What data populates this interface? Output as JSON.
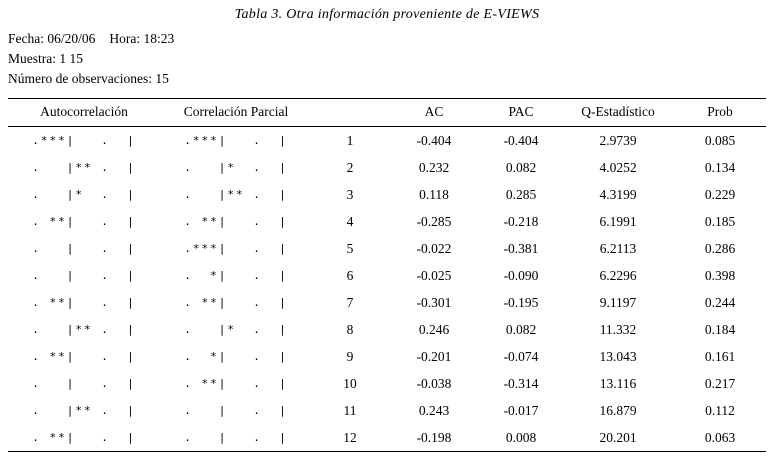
{
  "page": {
    "title": "Tabla 3. Otra información proveniente de E-VIEWS",
    "info": {
      "fecha": "Fecha: 06/20/06",
      "hora": "Hora: 18:23",
      "muestra": "Muestra: 1 15",
      "observaciones": "Número de observaciones: 15"
    }
  },
  "table": {
    "headers": {
      "autocorrelation": "Autocorrelación",
      "partial_correlation": "Correlación Parcial",
      "lag": "",
      "ac": "AC",
      "pac": "PAC",
      "q_stat": "Q-Estadístico",
      "prob": "Prob"
    },
    "rows": [
      {
        "autocorrelation": ".***|   .  |",
        "partial_correlation": ".***|   .  |",
        "lag": "1",
        "ac": "-0.404",
        "pac": "-0.404",
        "q_stat": "2.9739",
        "prob": "0.085"
      },
      {
        "autocorrelation": ".   |** .  |",
        "partial_correlation": ".   |*  .  |",
        "lag": "2",
        "ac": "0.232",
        "pac": "0.082",
        "q_stat": "4.0252",
        "prob": "0.134"
      },
      {
        "autocorrelation": ".   |*  .  |",
        "partial_correlation": ".   |** .  |",
        "lag": "3",
        "ac": "0.118",
        "pac": "0.285",
        "q_stat": "4.3199",
        "prob": "0.229"
      },
      {
        "autocorrelation": ". **|   .  |",
        "partial_correlation": ". **|   .  |",
        "lag": "4",
        "ac": "-0.285",
        "pac": "-0.218",
        "q_stat": "6.1991",
        "prob": "0.185"
      },
      {
        "autocorrelation": ".   |   .  |",
        "partial_correlation": ".***|   .  |",
        "lag": "5",
        "ac": "-0.022",
        "pac": "-0.381",
        "q_stat": "6.2113",
        "prob": "0.286"
      },
      {
        "autocorrelation": ".   |   .  |",
        "partial_correlation": ".  *|   .  |",
        "lag": "6",
        "ac": "-0.025",
        "pac": "-0.090",
        "q_stat": "6.2296",
        "prob": "0.398"
      },
      {
        "autocorrelation": ". **|   .  |",
        "partial_correlation": ". **|   .  |",
        "lag": "7",
        "ac": "-0.301",
        "pac": "-0.195",
        "q_stat": "9.1197",
        "prob": "0.244"
      },
      {
        "autocorrelation": ".   |** .  |",
        "partial_correlation": ".   |*  .  |",
        "lag": "8",
        "ac": "0.246",
        "pac": "0.082",
        "q_stat": "11.332",
        "prob": "0.184"
      },
      {
        "autocorrelation": ". **|   .  |",
        "partial_correlation": ".  *|   .  |",
        "lag": "9",
        "ac": "-0.201",
        "pac": "-0.074",
        "q_stat": "13.043",
        "prob": "0.161"
      },
      {
        "autocorrelation": ".   |   .  |",
        "partial_correlation": ". **|   .  |",
        "lag": "10",
        "ac": "-0.038",
        "pac": "-0.314",
        "q_stat": "13.116",
        "prob": "0.217"
      },
      {
        "autocorrelation": ".   |** .  |",
        "partial_correlation": ".   |   .  |",
        "lag": "11",
        "ac": "0.243",
        "pac": "-0.017",
        "q_stat": "16.879",
        "prob": "0.112"
      },
      {
        "autocorrelation": ". **|   .  |",
        "partial_correlation": ".   |   .  |",
        "lag": "12",
        "ac": "-0.198",
        "pac": "0.008",
        "q_stat": "20.201",
        "prob": "0.063"
      }
    ]
  }
}
